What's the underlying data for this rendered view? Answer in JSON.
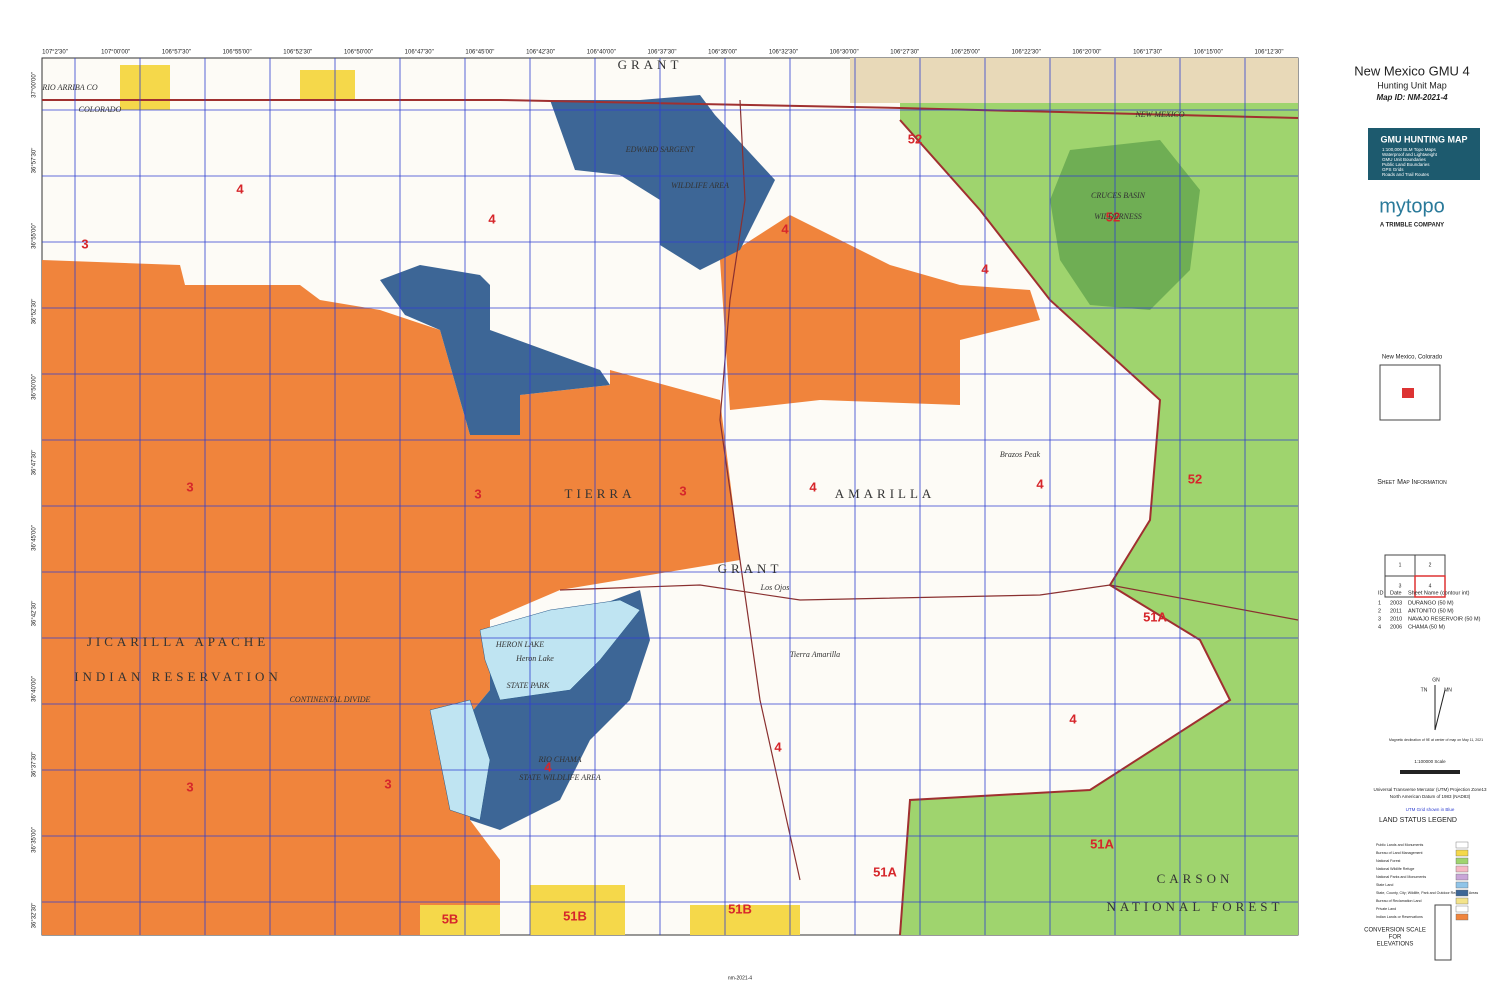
{
  "header": {
    "title": "New Mexico GMU 4",
    "subtitle": "Hunting Unit Map",
    "map_id": "Map ID: NM-2021-4"
  },
  "promo": {
    "title": "GMU HUNTING MAP",
    "bullets": [
      "1:100,000 BLM Topo Maps",
      "Waterproof and Lightweight",
      "GMU Unit Boundaries",
      "Public Land Boundaries",
      "GPS Grids",
      "Roads and Trail Routes"
    ]
  },
  "brand": {
    "logo": "mytopo",
    "tagline": "A TRIMBLE COMPANY"
  },
  "locator": {
    "title": "New Mexico, Colorado"
  },
  "sheet_info": {
    "title": "Sheet Map Information",
    "index": [
      "1",
      "2",
      "3",
      "4"
    ],
    "columns": [
      "ID",
      "Date",
      "Sheet Name (contour int)"
    ],
    "rows": [
      [
        "1",
        "2003",
        "DURANGO (50 M)"
      ],
      [
        "2",
        "2011",
        "ANTONITO (50 M)"
      ],
      [
        "3",
        "2010",
        "NAVAJO RESERVOIR (50 M)"
      ],
      [
        "4",
        "2006",
        "CHAMA (50 M)"
      ]
    ]
  },
  "declination": {
    "labels": [
      "GN",
      "TN",
      "MN"
    ],
    "note": "Magnetic declination of 9E at center of map on May 11, 2021"
  },
  "scale": "1:100000 Scale",
  "projection": [
    "Universal Transverse Mercator (UTM) Projection Zone13",
    "North American Datum of 1983 (NAD83)",
    "UTM Grid shown in Blue"
  ],
  "legend": {
    "title": "LAND STATUS LEGEND",
    "items": [
      "Public Lands and Monuments",
      "Bureau of Land Management",
      "National Forest",
      "National Wildlife Refuge",
      "National Parks and Monuments",
      "State Land",
      "State, County, City; Wildlife, Park and Outdoor Recreation Areas",
      "Bureau of Reclamation Land",
      "Private Land",
      "Indian Lands or Reservations"
    ]
  },
  "conversion": [
    "CONVERSION SCALE",
    "FOR",
    "ELEVATIONS"
  ],
  "footer": "nm-2021-4",
  "map": {
    "longitudes": [
      "107°2'30\"",
      "107°00'00\"",
      "106°57'30\"",
      "106°55'00\"",
      "106°52'30\"",
      "106°50'00\"",
      "106°47'30\"",
      "106°45'00\"",
      "106°42'30\"",
      "106°40'00\"",
      "106°37'30\"",
      "106°35'00\"",
      "106°32'30\"",
      "106°30'00\"",
      "106°27'30\"",
      "106°25'00\"",
      "106°22'30\"",
      "106°20'00\"",
      "106°17'30\"",
      "106°15'00\"",
      "106°12'30\""
    ],
    "latitudes": [
      "37°00'00\"",
      "36°57'30\"",
      "36°55'00\"",
      "36°52'30\"",
      "36°50'00\"",
      "36°47'30\"",
      "36°45'00\"",
      "36°42'30\"",
      "36°40'00\"",
      "36°37'30\"",
      "36°35'00\"",
      "36°32'30\""
    ],
    "units": [
      "3",
      "3",
      "3",
      "3",
      "3",
      "3",
      "4",
      "4",
      "4",
      "4",
      "4",
      "4",
      "4",
      "4",
      "4",
      "52",
      "52",
      "52",
      "51A",
      "51A",
      "51A",
      "5B",
      "51B",
      "51B"
    ],
    "places": [
      "GRANT",
      "TIERRA",
      "AMARILLA",
      "GRANT",
      "JICARILLA APACHE",
      "INDIAN RESERVATION",
      "CARSON",
      "NATIONAL FOREST"
    ],
    "small_places": [
      "EDWARD SARGENT",
      "WILDLIFE AREA",
      "CRUCES BASIN",
      "WILDERNESS",
      "HERON LAKE",
      "Heron Lake",
      "STATE PARK",
      "RIO CHAMA",
      "STATE WILDLIFE AREA",
      "Tierra Amarilla",
      "Los Ojos",
      "Brazos Peak",
      "RIO ARRIBA CO",
      "COLORADO",
      "NEW MEXICO",
      "CONTINENTAL DIVIDE"
    ]
  }
}
